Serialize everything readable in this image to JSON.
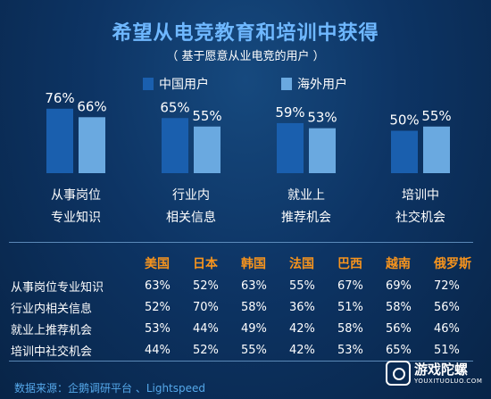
{
  "title": "希望从电竞教育和培训中获得",
  "subtitle": "（ 基于愿意从业电竞的用户 ）",
  "colors": {
    "china": "#1a5fae",
    "overseas": "#6aa9e0",
    "header_orange": "#f7941d",
    "title_blue": "#6fb8ff"
  },
  "chart_data": {
    "type": "bar",
    "categories": [
      [
        "从事岗位",
        "专业知识"
      ],
      [
        "行业内",
        "相关信息"
      ],
      [
        "就业上",
        "推荐机会"
      ],
      [
        "培训中",
        "社交机会"
      ]
    ],
    "series": [
      {
        "name": "中国用户",
        "values": [
          76,
          65,
          59,
          50
        ],
        "labels": [
          "76%",
          "65%",
          "59%",
          "50%"
        ]
      },
      {
        "name": "海外用户",
        "values": [
          66,
          55,
          53,
          55
        ],
        "labels": [
          "66%",
          "55%",
          "53%",
          "55%"
        ]
      }
    ],
    "ylim": [
      0,
      100
    ],
    "legend": "top-center",
    "grid": false
  },
  "table": {
    "columns": [
      "美国",
      "日本",
      "韩国",
      "法国",
      "巴西",
      "越南",
      "俄罗斯"
    ],
    "rows": [
      {
        "label": "从事岗位专业知识",
        "values": [
          "63%",
          "52%",
          "63%",
          "55%",
          "67%",
          "69%",
          "72%"
        ]
      },
      {
        "label": "行业内相关信息",
        "values": [
          "52%",
          "70%",
          "58%",
          "36%",
          "51%",
          "58%",
          "56%"
        ]
      },
      {
        "label": "就业上推荐机会",
        "values": [
          "53%",
          "44%",
          "49%",
          "42%",
          "58%",
          "56%",
          "46%"
        ]
      },
      {
        "label": "培训中社交机会",
        "values": [
          "44%",
          "52%",
          "55%",
          "42%",
          "53%",
          "65%",
          "51%"
        ]
      }
    ]
  },
  "source": "数据来源：企鹅调研平台 、Lightspeed",
  "watermark": {
    "name": "游戏陀螺",
    "sub": "YOUXITUOLUO.COM"
  }
}
